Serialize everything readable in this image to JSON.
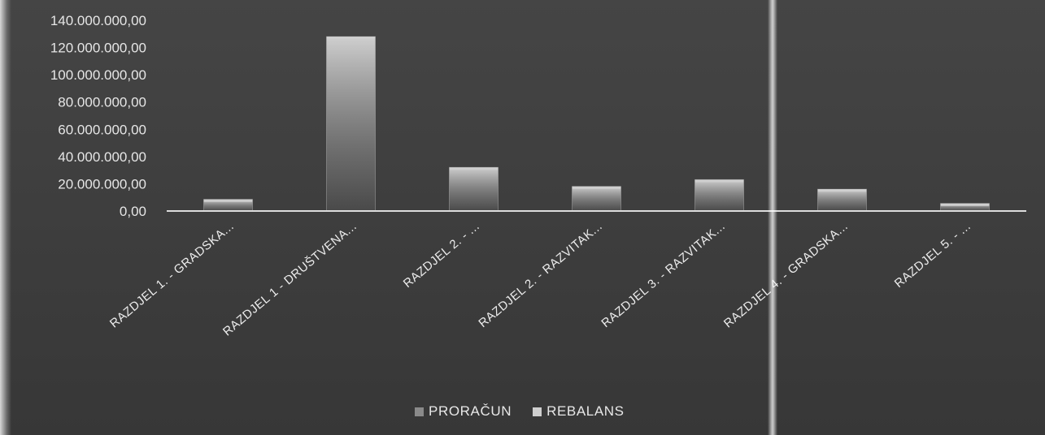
{
  "colors": {
    "background": "#3e3e3e",
    "proracun": "#8a8a8a",
    "rebalans": "#cfcfcf",
    "axis": "#dcdcdc",
    "text": "#e6e6e6"
  },
  "chart_data": {
    "type": "bar",
    "title": "",
    "xlabel": "",
    "ylabel": "",
    "ylim": [
      0,
      140000000
    ],
    "yticks": [
      "0,00",
      "20.000.000,00",
      "40.000.000,00",
      "60.000.000,00",
      "80.000.000,00",
      "100.000.000,00",
      "120.000.000,00",
      "140.000.000,00"
    ],
    "categories": [
      "RAZDJEL 1. - GRADSKA...",
      "RAZDJEL 1 - DRUŠTVENA...",
      "RAZDJEL 2. - ...",
      "RAZDJEL 2. - RAZVITAK...",
      "RAZDJEL 3. - RAZVITAK...",
      "RAZDJEL 4. - GRADSKA...",
      "RAZDJEL 5. - ..."
    ],
    "series": [
      {
        "name": "PRORAČUN",
        "values": [
          8500000,
          128000000,
          32000000,
          18000000,
          23000000,
          16000000,
          5500000
        ]
      },
      {
        "name": "REBALANS",
        "values": [
          8500000,
          128000000,
          32000000,
          18000000,
          23000000,
          16000000,
          5500000
        ]
      }
    ],
    "grid": false,
    "legend_position": "bottom"
  }
}
